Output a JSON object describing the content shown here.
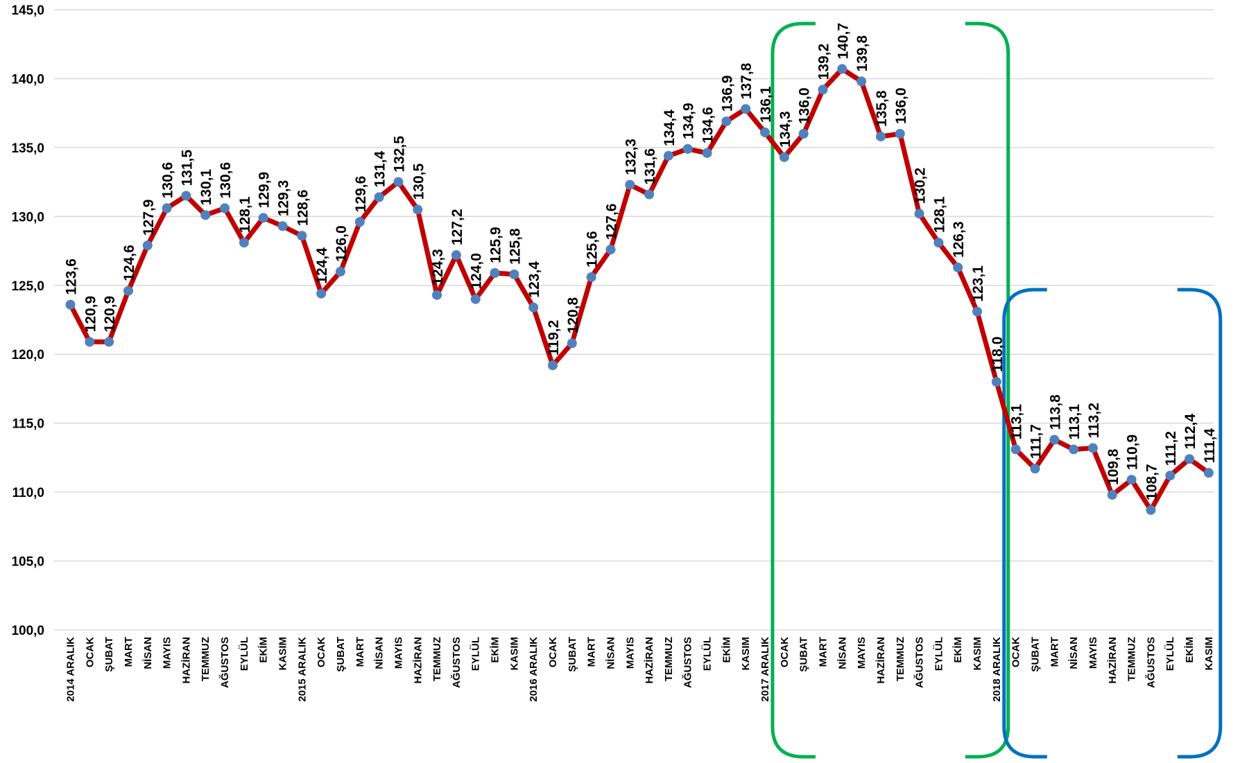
{
  "chart_data": {
    "type": "line",
    "title": "",
    "xlabel": "",
    "ylabel": "",
    "ylim": [
      100,
      145
    ],
    "yticks": [
      "100,0",
      "105,0",
      "110,0",
      "115,0",
      "120,0",
      "125,0",
      "130,0",
      "135,0",
      "140,0",
      "145,0"
    ],
    "grid": "horizontal",
    "legend": "none",
    "categories": [
      "2014 ARALIK",
      "OCAK",
      "ŞUBAT",
      "MART",
      "NİSAN",
      "MAYIS",
      "HAZİRAN",
      "TEMMUZ",
      "AĞUSTOS",
      "EYLÜL",
      "EKİM",
      "KASIM",
      "2015 ARALIK",
      "OCAK",
      "ŞUBAT",
      "MART",
      "NİSAN",
      "MAYIS",
      "HAZİRAN",
      "TEMMUZ",
      "AĞUSTOS",
      "EYLÜL",
      "EKİM",
      "KASIM",
      "2016 ARALIK",
      "OCAK",
      "ŞUBAT",
      "MART",
      "NİSAN",
      "MAYIS",
      "HAZİRAN",
      "TEMMUZ",
      "AĞUSTOS",
      "EYLÜL",
      "EKİM",
      "KASIM",
      "2017 ARALIK",
      "OCAK",
      "ŞUBAT",
      "MART",
      "NİSAN",
      "MAYIS",
      "HAZİRAN",
      "TEMMUZ",
      "AĞUSTOS",
      "EYLÜL",
      "EKİM",
      "KASIM",
      "2018 ARALIK",
      "OCAK",
      "ŞUBAT",
      "MART",
      "NİSAN",
      "MAYIS",
      "HAZİRAN",
      "TEMMUZ",
      "AĞUSTOS",
      "EYLÜL",
      "EKİM",
      "KASIM"
    ],
    "values": [
      123.6,
      120.9,
      120.9,
      124.6,
      127.9,
      130.6,
      131.5,
      130.1,
      130.6,
      128.1,
      129.9,
      129.3,
      128.6,
      124.4,
      126.0,
      129.6,
      131.4,
      132.5,
      130.5,
      124.3,
      127.2,
      124.0,
      125.9,
      125.8,
      123.4,
      119.2,
      120.8,
      125.6,
      127.6,
      132.3,
      131.6,
      134.4,
      134.9,
      134.6,
      136.9,
      137.8,
      136.1,
      134.3,
      136.0,
      139.2,
      140.7,
      139.8,
      135.8,
      136.0,
      130.2,
      128.1,
      126.3,
      123.1,
      118.0,
      113.1,
      111.7,
      113.8,
      113.1,
      113.2,
      109.8,
      110.9,
      108.7,
      111.2,
      112.4,
      111.4
    ],
    "data_labels": [
      "123,6",
      "120,9",
      "120,9",
      "124,6",
      "127,9",
      "130,6",
      "131,5",
      "130,1",
      "130,6",
      "128,1",
      "129,9",
      "129,3",
      "128,6",
      "124,4",
      "126,0",
      "129,6",
      "131,4",
      "132,5",
      "130,5",
      "124,3",
      "127,2",
      "124,0",
      "125,9",
      "125,8",
      "123,4",
      "119,2",
      "120,8",
      "125,6",
      "127,6",
      "132,3",
      "131,6",
      "134,4",
      "134,9",
      "134,6",
      "136,9",
      "137,8",
      "136,1",
      "134,3",
      "136,0",
      "139,2",
      "140,7",
      "139,8",
      "135,8",
      "136,0",
      "130,2",
      "128,1",
      "126,3",
      "123,1",
      "118,0",
      "113,1",
      "111,7",
      "113,8",
      "113,1",
      "113,2",
      "109,8",
      "110,9",
      "108,7",
      "111,2",
      "112,4",
      "111,4"
    ],
    "line_color": "#c00000",
    "marker_color": "#4f81bd",
    "brackets": [
      {
        "color": "#00b050",
        "from_index": 37,
        "to_index": 48
      },
      {
        "color": "#0070c0",
        "from_index": 49,
        "to_index": 59
      }
    ]
  }
}
